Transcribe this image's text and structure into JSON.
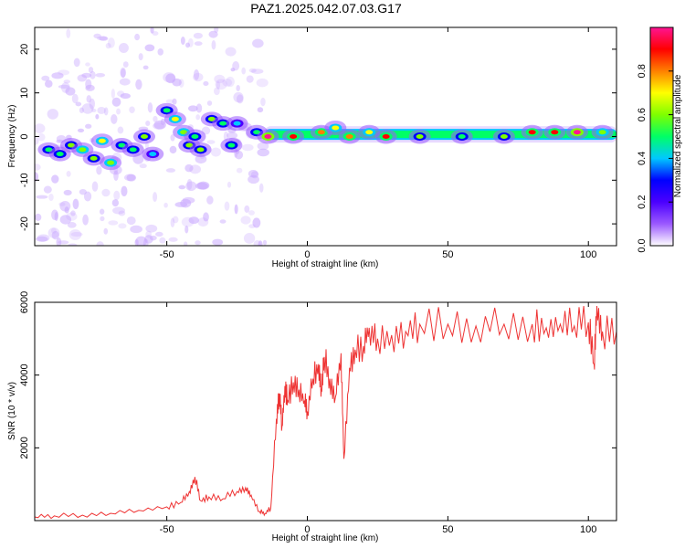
{
  "title": "PAZ1.2025.042.07.03.G17",
  "chart_data": [
    {
      "type": "heatmap",
      "title": "",
      "xlabel": "Height of straight line (km)",
      "ylabel": "Frequency (Hz)",
      "xlim": [
        -97,
        110
      ],
      "ylim": [
        -25,
        25
      ],
      "xticks": [
        -50,
        0,
        50,
        100
      ],
      "yticks": [
        -20,
        -10,
        0,
        10,
        20
      ],
      "grid": false,
      "colorbar": {
        "label": "Normalized spectral amplitude",
        "range": [
          0,
          1
        ],
        "ticks": [
          0.0,
          0.2,
          0.4,
          0.6,
          0.8
        ],
        "colors": [
          "#ffffff",
          "#9b59ff",
          "#4b00ff",
          "#0000ff",
          "#00c8ff",
          "#00ff66",
          "#7fff00",
          "#ffff00",
          "#ff8000",
          "#ff0000",
          "#ff1493"
        ]
      },
      "blobs": [
        {
          "x": -92,
          "y": -3,
          "amp": 0.45
        },
        {
          "x": -88,
          "y": -4,
          "amp": 0.5
        },
        {
          "x": -84,
          "y": -2,
          "amp": 0.55
        },
        {
          "x": -80,
          "y": -3,
          "amp": 0.6
        },
        {
          "x": -76,
          "y": -5,
          "amp": 0.55
        },
        {
          "x": -73,
          "y": -1,
          "amp": 0.65
        },
        {
          "x": -70,
          "y": -6,
          "amp": 0.6
        },
        {
          "x": -66,
          "y": -2,
          "amp": 0.5
        },
        {
          "x": -62,
          "y": -3,
          "amp": 0.45
        },
        {
          "x": -58,
          "y": 0,
          "amp": 0.55
        },
        {
          "x": -55,
          "y": -4,
          "amp": 0.4
        },
        {
          "x": -50,
          "y": 6,
          "amp": 0.45
        },
        {
          "x": -47,
          "y": 4,
          "amp": 0.65
        },
        {
          "x": -44,
          "y": 1,
          "amp": 0.6
        },
        {
          "x": -42,
          "y": -2,
          "amp": 0.55
        },
        {
          "x": -40,
          "y": 0,
          "amp": 0.5
        },
        {
          "x": -38,
          "y": -3,
          "amp": 0.55
        },
        {
          "x": -34,
          "y": 4,
          "amp": 0.55
        },
        {
          "x": -30,
          "y": 3,
          "amp": 0.5
        },
        {
          "x": -27,
          "y": -2,
          "amp": 0.5
        },
        {
          "x": -25,
          "y": 3,
          "amp": 0.4
        },
        {
          "x": -18,
          "y": 1,
          "amp": 0.5
        },
        {
          "x": -14,
          "y": 0,
          "amp": 0.95
        },
        {
          "x": -5,
          "y": 0,
          "amp": 0.9
        },
        {
          "x": 5,
          "y": 1,
          "amp": 0.75
        },
        {
          "x": 10,
          "y": 2,
          "amp": 0.7
        },
        {
          "x": 15,
          "y": 0,
          "amp": 0.8
        },
        {
          "x": 22,
          "y": 1,
          "amp": 0.7
        },
        {
          "x": 28,
          "y": 0,
          "amp": 0.9
        },
        {
          "x": 40,
          "y": 0,
          "amp": 0.55
        },
        {
          "x": 55,
          "y": 0,
          "amp": 0.5
        },
        {
          "x": 70,
          "y": 0,
          "amp": 0.55
        },
        {
          "x": 80,
          "y": 1,
          "amp": 0.85
        },
        {
          "x": 88,
          "y": 1,
          "amp": 0.9
        },
        {
          "x": 96,
          "y": 1,
          "amp": 0.95
        },
        {
          "x": 105,
          "y": 1,
          "amp": 0.6
        }
      ]
    },
    {
      "type": "line",
      "title": "",
      "xlabel": "Height of straight line (km)",
      "ylabel": "SNR (10 * v/v)",
      "xlim": [
        -97,
        110
      ],
      "ylim": [
        0,
        6000
      ],
      "xticks": [
        -50,
        0,
        50,
        100
      ],
      "yticks": [
        2000,
        4000,
        6000
      ],
      "grid": false,
      "color": "#ee3333",
      "series": [
        {
          "x": [
            -97,
            -90,
            -80,
            -70,
            -60,
            -50,
            -45,
            -42,
            -40,
            -38,
            -35,
            -30,
            -25,
            -22,
            -20,
            -17,
            -15,
            -13,
            -11,
            -10,
            -9,
            -8,
            -7,
            -5,
            -3,
            -1,
            0,
            2,
            4,
            5,
            6,
            8,
            10,
            12,
            13,
            15,
            17,
            20,
            22,
            25,
            30,
            35,
            40,
            50,
            60,
            70,
            80,
            85,
            90,
            95,
            100,
            102,
            103,
            105,
            110
          ],
          "values": [
            100,
            130,
            150,
            200,
            280,
            380,
            500,
            800,
            1200,
            550,
            650,
            600,
            800,
            900,
            700,
            250,
            200,
            350,
            2800,
            3500,
            2600,
            3700,
            3300,
            3800,
            3600,
            3300,
            3000,
            3900,
            4300,
            3600,
            4500,
            3900,
            3400,
            4600,
            1700,
            4200,
            4700,
            4800,
            5300,
            5000,
            5100,
            5200,
            5400,
            5400,
            5350,
            5400,
            5400,
            5300,
            5400,
            5350,
            5450,
            4300,
            5900,
            5200,
            5200
          ]
        }
      ]
    }
  ]
}
